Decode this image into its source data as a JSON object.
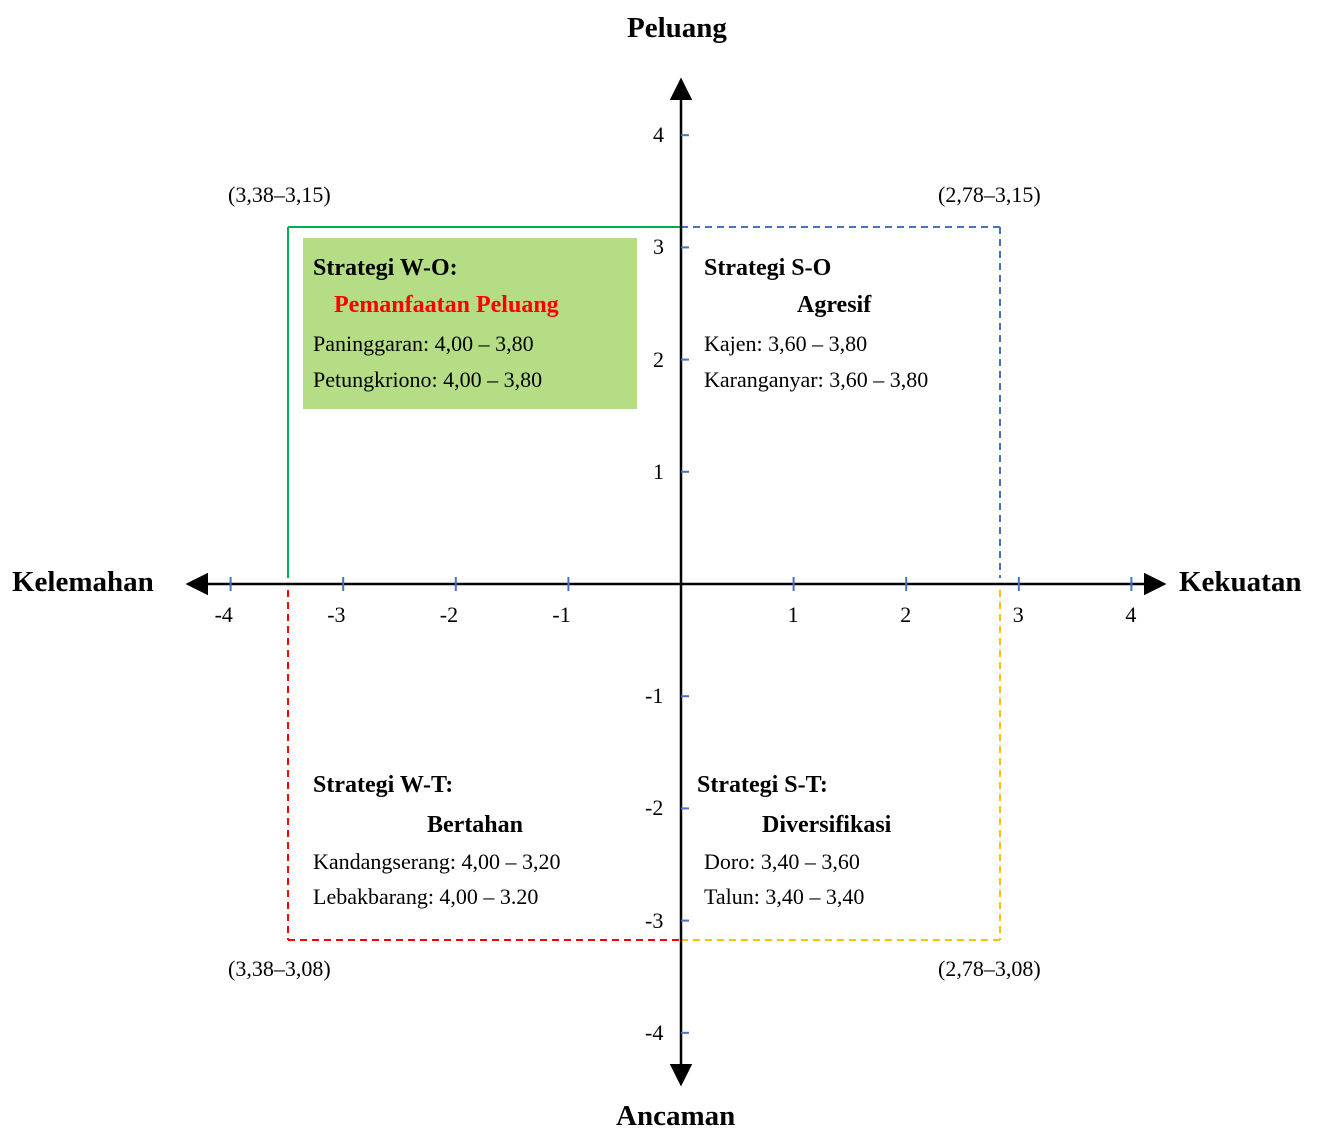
{
  "axes": {
    "top": "Peluang",
    "bottom": "Ancaman",
    "left": "Kelemahan",
    "right": "Kekuatan",
    "x_ticks": [
      "-4",
      "-3",
      "-2",
      "-1",
      "1",
      "2",
      "3",
      "4"
    ],
    "y_ticks": [
      "4",
      "3",
      "2",
      "1",
      "-1",
      "-2",
      "-3",
      "-4"
    ],
    "range": [
      -4,
      4
    ]
  },
  "corners": {
    "top_left": "(3,38–3,15)",
    "top_right": "(2,78–3,15)",
    "bottom_left": "(3,38–3,08)",
    "bottom_right": "(2,78–3,08)"
  },
  "quadrants": {
    "wo": {
      "title": "Strategi W-O:",
      "subtitle": "Pemanfaatan Peluang",
      "items": [
        "Paninggaran: 4,00 – 3,80",
        "Petungkriono: 4,00 – 3,80"
      ],
      "box_color": "#b4dd86",
      "line_color": "#00b050",
      "subtitle_color": "#ff0000"
    },
    "so": {
      "title": "Strategi S-O",
      "subtitle": "Agresif",
      "items": [
        "Kajen: 3,60 – 3,80",
        "Karanganyar: 3,60 – 3,80"
      ],
      "line_color": "#4472c4"
    },
    "wt": {
      "title": "Strategi W-T:",
      "subtitle": "Bertahan",
      "items": [
        "Kandangserang: 4,00 – 3,20",
        "Lebakbarang: 4,00 – 3.20"
      ],
      "line_color": "#ff0000"
    },
    "st": {
      "title": "Strategi S-T:",
      "subtitle": "Diversifikasi",
      "items": [
        "Doro: 3,40 – 3,60",
        "Talun: 3,40 – 3,40"
      ],
      "line_color": "#ffc000"
    }
  },
  "colors": {
    "axis": "#000000",
    "tick": "#4472c4"
  }
}
